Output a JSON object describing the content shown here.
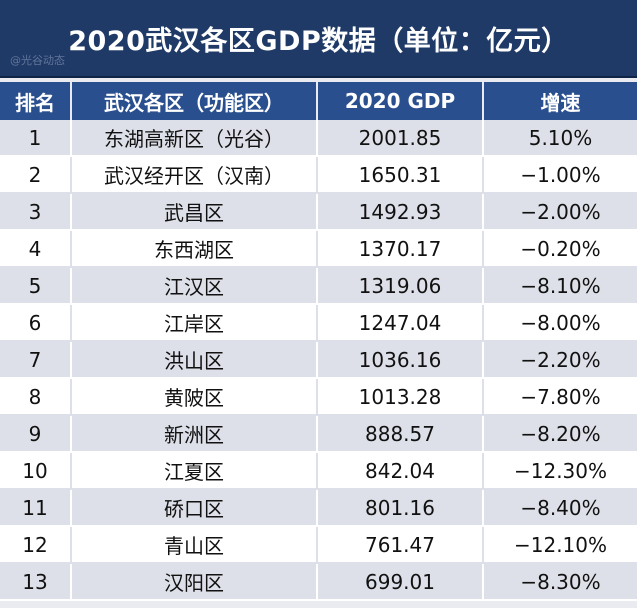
{
  "title": "2020武汉各区GDP数据（单位：亿元）",
  "watermark": "@光谷动态",
  "chart_data": {
    "type": "table",
    "columns": [
      "排名",
      "武汉各区（功能区）",
      "2020 GDP",
      "增速"
    ],
    "rows": [
      [
        "1",
        "东湖高新区（光谷）",
        "2001.85",
        "5.10%"
      ],
      [
        "2",
        "武汉经开区（汉南）",
        "1650.31",
        "−1.00%"
      ],
      [
        "3",
        "武昌区",
        "1492.93",
        "−2.00%"
      ],
      [
        "4",
        "东西湖区",
        "1370.17",
        "−0.20%"
      ],
      [
        "5",
        "江汉区",
        "1319.06",
        "−8.10%"
      ],
      [
        "6",
        "江岸区",
        "1247.04",
        "−8.00%"
      ],
      [
        "7",
        "洪山区",
        "1036.16",
        "−2.20%"
      ],
      [
        "8",
        "黄陂区",
        "1013.28",
        "−7.80%"
      ],
      [
        "9",
        "新洲区",
        "888.57",
        "−8.20%"
      ],
      [
        "10",
        "江夏区",
        "842.04",
        "−12.30%"
      ],
      [
        "11",
        "硚口区",
        "801.16",
        "−8.40%"
      ],
      [
        "12",
        "青山区",
        "761.47",
        "−12.10%"
      ],
      [
        "13",
        "汉阳区",
        "699.01",
        "−8.30%"
      ]
    ]
  },
  "colors": {
    "title_bg": "#1f3a66",
    "header_bg": "#2a4f8f",
    "row_alt": "#dde0e8"
  }
}
